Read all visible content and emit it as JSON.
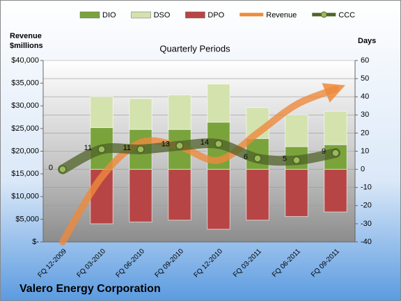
{
  "chart_data": {
    "type": "bar-line",
    "title": "Quarterly Periods",
    "ylabel": [
      "Revenue",
      "$millions"
    ],
    "y2label": "Days",
    "annotation": "Valero Energy Corporation",
    "categories": [
      "FQ 12-2009",
      "FQ 03-2010",
      "FQ 06-2010",
      "FQ 09-2010",
      "FQ 12-2010",
      "FQ 03-2011",
      "FQ 06-2011",
      "FQ 09-2011"
    ],
    "series": [
      {
        "name": "DIO",
        "type": "bar",
        "axis": "y2",
        "color": "#7aa33c",
        "values": [
          null,
          23,
          22,
          22,
          26,
          17,
          12.5,
          13.6
        ]
      },
      {
        "name": "DSO",
        "type": "bar",
        "axis": "y2",
        "color": "#d4e2ae",
        "values": [
          null,
          17,
          17,
          19,
          21,
          17,
          17.5,
          18.4
        ]
      },
      {
        "name": "DPO",
        "type": "bar",
        "axis": "y2",
        "color": "#b84545",
        "values": [
          null,
          -30,
          -29,
          -28,
          -33,
          -28,
          -26,
          -23.5
        ]
      },
      {
        "name": "Revenue",
        "type": "line",
        "axis": "y",
        "color": "#ed8a3c",
        "values": [
          0,
          14300,
          21900,
          21000,
          18000,
          24000,
          30300,
          33700
        ]
      },
      {
        "name": "CCC",
        "type": "line",
        "axis": "y2",
        "color": "#4f6228",
        "values": [
          0,
          11,
          11,
          13,
          14,
          6,
          5,
          9
        ]
      }
    ],
    "ylim": [
      0,
      40000
    ],
    "yticks": [
      {
        "value": 0,
        "label": "$-"
      },
      {
        "value": 5000,
        "label": "$5,000"
      },
      {
        "value": 10000,
        "label": "$10,000"
      },
      {
        "value": 15000,
        "label": "$15,000"
      },
      {
        "value": 20000,
        "label": "$20,000"
      },
      {
        "value": 25000,
        "label": "$25,000"
      },
      {
        "value": 30000,
        "label": "$30,000"
      },
      {
        "value": 35000,
        "label": "$35,000"
      },
      {
        "value": 40000,
        "label": "$40,000"
      }
    ],
    "y2lim": [
      -40,
      60
    ],
    "y2ticks": [
      -40,
      -30,
      -20,
      -10,
      0,
      10,
      20,
      30,
      40,
      50,
      60
    ],
    "grid": true,
    "legend": "top"
  }
}
